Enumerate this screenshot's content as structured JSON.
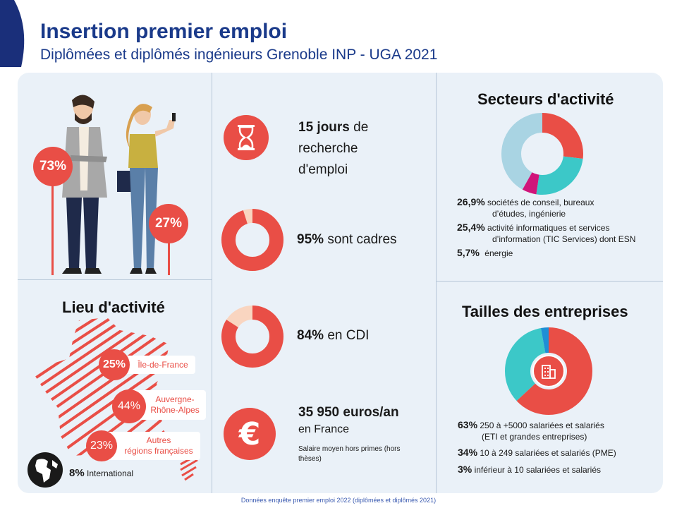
{
  "header": {
    "title": "Insertion premier emploi",
    "subtitle": "Diplômées et diplômés ingénieurs Grenoble INP - UGA 2021"
  },
  "gender": {
    "men_pct": "73%",
    "women_pct": "27%"
  },
  "stats": {
    "search": {
      "value": "15 jours",
      "text": "de",
      "line2": "recherche",
      "line3": "d'emploi",
      "icon": "hourglass-icon"
    },
    "cadres": {
      "value": "95%",
      "text": "sont cadres",
      "fraction": 0.95
    },
    "cdi": {
      "value": "84%",
      "text": "en CDI",
      "fraction": 0.84
    },
    "salary": {
      "value": "35 950 euros/an",
      "line2": "en France",
      "note": "Salaire moyen hors primes (hors thèses)",
      "icon": "euro-icon"
    }
  },
  "lieu": {
    "heading": "Lieu d'activité",
    "regions": [
      {
        "pct": "25%",
        "label": "Île-de-France"
      },
      {
        "pct": "44%",
        "label": "Auvergne-Rhône-Alpes",
        "line1": "Auvergne-",
        "line2": "Rhône-Alpes"
      },
      {
        "pct": "23%",
        "label": "Autres régions françaises",
        "line1": "Autres",
        "line2": "régions françaises"
      }
    ],
    "international": {
      "pct": "8%",
      "label": "International",
      "icon": "globe-icon"
    }
  },
  "secteurs": {
    "heading": "Secteurs d'activité",
    "items": [
      {
        "pct": "26,9%",
        "line1": "sociétés de conseil, bureaux",
        "line2": "d’études, ingénierie",
        "value": 26.9,
        "color": "#e94e46"
      },
      {
        "pct": "25,4%",
        "line1": "activité informatiques et services",
        "line2": "d’information (TIC Services) dont ESN",
        "value": 25.4,
        "color": "#3cc8c8"
      },
      {
        "pct": "5,7%",
        "line1": "énergie",
        "line2": "",
        "value": 5.7,
        "color": "#d0157a"
      }
    ],
    "other_color": "#a9d4e3"
  },
  "tailles": {
    "heading": "Tailles des entreprises",
    "items": [
      {
        "pct": "63%",
        "line1": "250 à +5000 salariées et salariés",
        "line2": "(ETI et grandes entreprises)",
        "value": 63,
        "color": "#e94e46"
      },
      {
        "pct": "34%",
        "line1": "10 à 249 salariées et salariés (PME)",
        "line2": "",
        "value": 34,
        "color": "#3cc8c8"
      },
      {
        "pct": "3%",
        "line1": "inférieur à 10 salariées et salariés",
        "line2": "",
        "value": 3,
        "color": "#1e8fd6"
      }
    ],
    "icon": "building-icon"
  },
  "footer": "Données enquête premier emploi 2022 (diplômées et diplômés 2021)"
}
